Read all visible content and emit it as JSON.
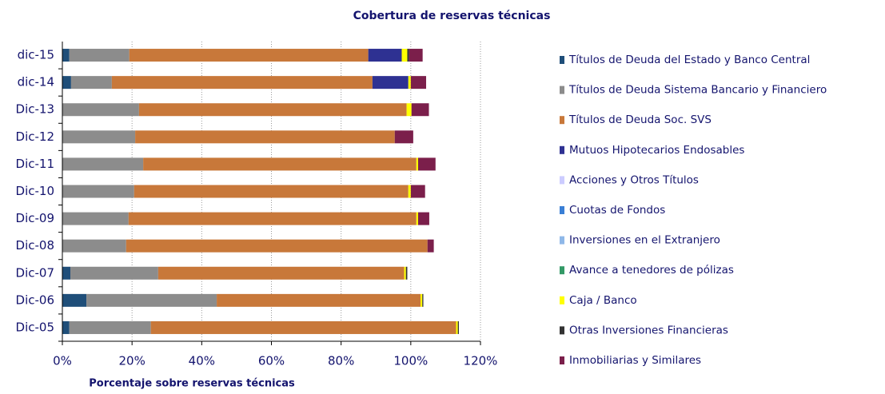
{
  "chart_data": {
    "type": "stacked-hbar",
    "title": "Cobertura de reservas técnicas",
    "x_label": "Porcentaje sobre reservas técnicas",
    "categories": [
      "Dic-05",
      "Dic-06",
      "Dic-07",
      "Dic-08",
      "Dic-09",
      "Dic-10",
      "Dic-11",
      "Dic-12",
      "Dic-13",
      "dic-14",
      "dic-15"
    ],
    "series": [
      {
        "name": "Títulos de Deuda del Estado y Banco Central",
        "color": "#1f4e79",
        "values": [
          2,
          6.9,
          2.3,
          0,
          0,
          0,
          0,
          0,
          0,
          2.5,
          2
        ]
      },
      {
        "name": "Títulos de Deuda Sistema Bancario y Financiero",
        "color": "#8c8c8c",
        "values": [
          23.4,
          37.4,
          25.2,
          18.3,
          19,
          20.6,
          23.2,
          20.9,
          22,
          11.7,
          17.2
        ]
      },
      {
        "name": "Títulos de Deuda Soc. SVS",
        "color": "#c8783a",
        "values": [
          87.6,
          58.5,
          70.6,
          86.5,
          82.6,
          78.7,
          78.4,
          74.5,
          76.8,
          74.8,
          68.6
        ]
      },
      {
        "name": "Mutuos Hipotecarios Endosables",
        "color": "#2e3192",
        "values": [
          0,
          0,
          0,
          0,
          0,
          0,
          0,
          0,
          0,
          10.3,
          9.6
        ]
      },
      {
        "name": "Acciones y Otros Títulos",
        "color": "#ccccff",
        "values": [
          0,
          0,
          0,
          0,
          0,
          0,
          0,
          0,
          0,
          0,
          0
        ]
      },
      {
        "name": "Cuotas de Fondos",
        "color": "#3a7fd5",
        "values": [
          0,
          0,
          0,
          0,
          0,
          0,
          0,
          0,
          0,
          0,
          0
        ]
      },
      {
        "name": "Inversiones en el Extranjero",
        "color": "#8fb8e8",
        "values": [
          0,
          0,
          0,
          0,
          0,
          0,
          0,
          0,
          0,
          0,
          0
        ]
      },
      {
        "name": "Avance a tenedores de pólizas",
        "color": "#339966",
        "values": [
          0,
          0,
          0,
          0,
          0,
          0,
          0,
          0,
          0,
          0,
          0
        ]
      },
      {
        "name": "Caja / Banco",
        "color": "#ffff00",
        "values": [
          0.5,
          0.5,
          0.5,
          0,
          0.5,
          0.7,
          0.5,
          0,
          1.4,
          0.7,
          1.6
        ]
      },
      {
        "name": "Otras Inversiones Financieras",
        "color": "#333333",
        "values": [
          0.3,
          0.3,
          0.4,
          0,
          0,
          0,
          0,
          0,
          0,
          0,
          0.5
        ]
      },
      {
        "name": "Inmobiliarias y Similares",
        "color": "#7b1f4b",
        "values": [
          0,
          0,
          0,
          1.8,
          3.2,
          4.1,
          5,
          5.3,
          5,
          4.4,
          3.9
        ]
      }
    ],
    "xlim": [
      0,
      120
    ],
    "xticks": [
      {
        "value": 0,
        "label": "0%"
      },
      {
        "value": 20,
        "label": "20%"
      },
      {
        "value": 40,
        "label": "40%"
      },
      {
        "value": 60,
        "label": "60%"
      },
      {
        "value": 80,
        "label": "80%"
      },
      {
        "value": 100,
        "label": "100%"
      },
      {
        "value": 120,
        "label": "120%"
      }
    ],
    "grid": true
  }
}
